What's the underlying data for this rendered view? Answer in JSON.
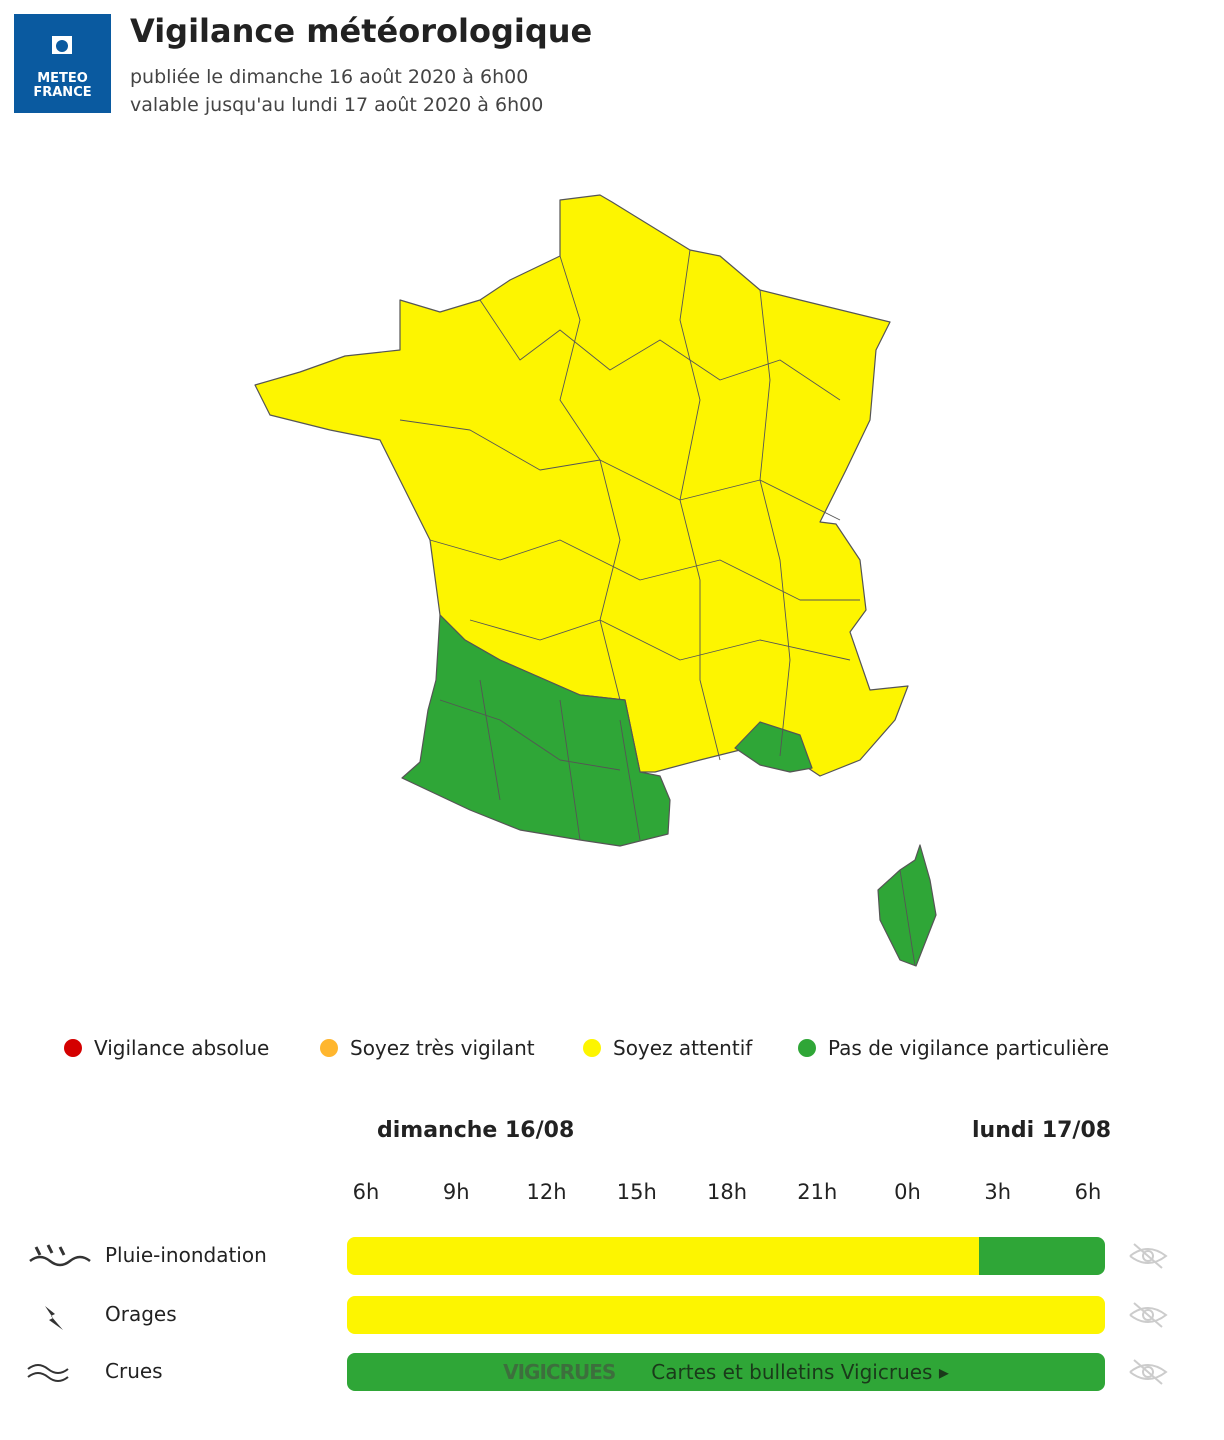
{
  "header": {
    "logo": [
      "METEO",
      "FRANCE"
    ],
    "title": "Vigilance météorologique",
    "published": "publiée le dimanche 16 août 2020 à 6h00",
    "valid": "valable jusqu'au lundi 17 août 2020 à 6h00"
  },
  "legend": [
    {
      "label": "Vigilance absolue",
      "color": "#d40000"
    },
    {
      "label": "Soyez très vigilant",
      "color": "#ffb62e"
    },
    {
      "label": "Soyez attentif",
      "color": "#fdf500"
    },
    {
      "label": "Pas de vigilance particulière",
      "color": "#2fa637"
    }
  ],
  "timeline": {
    "days": [
      "dimanche 16/08",
      "lundi 17/08"
    ],
    "hours": [
      "6h",
      "9h",
      "12h",
      "15h",
      "18h",
      "21h",
      "0h",
      "3h",
      "6h"
    ],
    "rows": [
      {
        "label": "Pluie-inondation",
        "segments": [
          {
            "color": "#fdf500",
            "hours": 20
          },
          {
            "color": "#2fa637",
            "hours": 4
          }
        ]
      },
      {
        "label": "Orages",
        "segments": [
          {
            "color": "#fdf500",
            "hours": 24
          }
        ]
      },
      {
        "label": "Crues",
        "segments": [
          {
            "color": "#2fa637",
            "hours": 24
          }
        ],
        "link": {
          "brand": "VIGICRUES",
          "text": "Cartes et bulletins Vigicrues ▸"
        }
      }
    ]
  }
}
